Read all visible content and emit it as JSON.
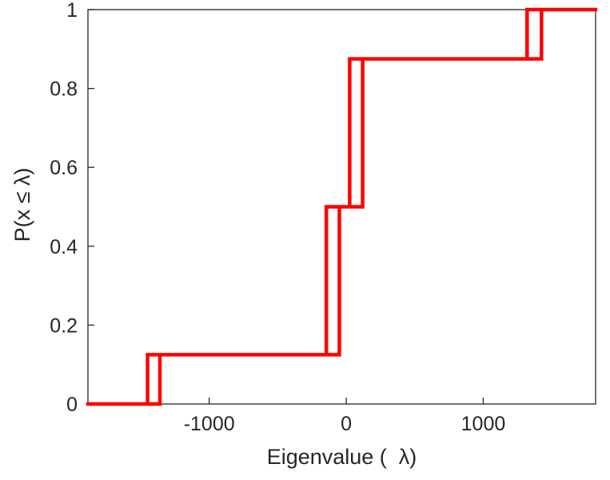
{
  "chart_data": {
    "type": "line",
    "subtype": "ecdf-step",
    "title": "",
    "xlabel": "Eigenvalue (  λ)",
    "ylabel": "P(x ≤ λ)",
    "xlim": [
      -1885,
      1820
    ],
    "ylim": [
      0,
      1
    ],
    "x_ticks": [
      -1000,
      0,
      1000
    ],
    "x_tick_labels": [
      "-1000",
      "0",
      "1000"
    ],
    "y_ticks": [
      0,
      0.2,
      0.4,
      0.6,
      0.8,
      1
    ],
    "y_tick_labels": [
      "0",
      "0.2",
      "0.4",
      "0.6",
      "0.8",
      "1"
    ],
    "grid": false,
    "legend": null,
    "line_color": "#ff0000",
    "line_width": 4.5,
    "axis_color": "#262626",
    "background": "#ffffff",
    "levels": [
      0,
      0.125,
      0.5,
      0.875,
      1
    ],
    "jumps": [
      {
        "x1": -1450,
        "x2": -1360,
        "from": 0,
        "to": 0.125
      },
      {
        "x1": -145,
        "x2": -50,
        "from": 0.125,
        "to": 0.5
      },
      {
        "x1": 25,
        "x2": 120,
        "from": 0.5,
        "to": 0.875
      },
      {
        "x1": 1320,
        "x2": 1425,
        "from": 0.875,
        "to": 1
      }
    ]
  }
}
